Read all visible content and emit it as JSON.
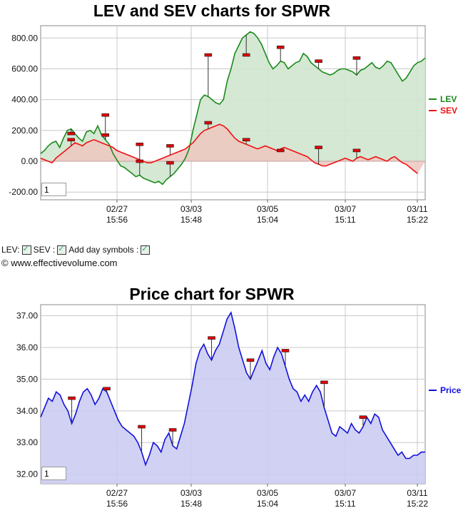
{
  "controls": {
    "lev_label": "LEV:",
    "sev_label": "SEV :",
    "day_symbols_label": "Add day symbols :",
    "lev_checked": true,
    "sev_checked": true,
    "day_symbols_checked": true
  },
  "copyright": "© www.effectivevolume.com",
  "colors": {
    "lev": "#1a8a1a",
    "sev": "#ee1111",
    "price": "#1111dd",
    "lev_fill": "#cfe6cf",
    "sev_fill": "#efc7c0",
    "price_fill": "#ccccf2",
    "marker": "#dd0000"
  },
  "chart_data": [
    {
      "type": "area",
      "title": "LEV and SEV charts for SPWR",
      "zoom_value": "1",
      "y_ticks": [
        "800.00",
        "600.00",
        "400.00",
        "200.00",
        "0.00",
        "-200.00"
      ],
      "ylim": [
        -250,
        880
      ],
      "x_ticks": [
        {
          "date": "02/27",
          "time": "15:56"
        },
        {
          "date": "03/03",
          "time": "15:48"
        },
        {
          "date": "03/05",
          "time": "15:04"
        },
        {
          "date": "03/07",
          "time": "15:11"
        },
        {
          "date": "03/11",
          "time": "15:22"
        }
      ],
      "grid": true,
      "legend_position": "right",
      "series": [
        {
          "name": "LEV",
          "values": [
            50,
            70,
            100,
            120,
            130,
            90,
            150,
            200,
            210,
            180,
            150,
            130,
            190,
            200,
            180,
            230,
            170,
            140,
            110,
            50,
            10,
            -30,
            -40,
            -60,
            -80,
            -100,
            -90,
            -110,
            -120,
            -130,
            -140,
            -130,
            -150,
            -120,
            -100,
            -80,
            -50,
            -20,
            20,
            80,
            200,
            300,
            400,
            430,
            420,
            400,
            380,
            370,
            400,
            520,
            600,
            700,
            750,
            800,
            820,
            840,
            830,
            800,
            760,
            700,
            640,
            600,
            620,
            650,
            640,
            600,
            620,
            640,
            650,
            700,
            680,
            640,
            620,
            600,
            580,
            570,
            560,
            570,
            590,
            600,
            600,
            590,
            580,
            560,
            590,
            600,
            620,
            640,
            610,
            600,
            620,
            650,
            640,
            600,
            560,
            520,
            540,
            580,
            620,
            640,
            650,
            670
          ]
        },
        {
          "name": "SEV",
          "values": [
            20,
            10,
            0,
            -10,
            20,
            40,
            60,
            80,
            100,
            120,
            110,
            100,
            120,
            130,
            140,
            130,
            120,
            110,
            100,
            90,
            70,
            60,
            50,
            40,
            30,
            20,
            10,
            0,
            -10,
            -10,
            0,
            10,
            20,
            30,
            40,
            50,
            60,
            70,
            80,
            100,
            120,
            150,
            180,
            200,
            210,
            220,
            230,
            240,
            230,
            210,
            180,
            150,
            130,
            120,
            110,
            100,
            90,
            80,
            90,
            100,
            90,
            80,
            70,
            80,
            90,
            80,
            70,
            60,
            50,
            40,
            30,
            10,
            -10,
            -20,
            -30,
            -30,
            -20,
            -10,
            0,
            10,
            20,
            10,
            0,
            20,
            30,
            20,
            10,
            20,
            30,
            20,
            10,
            0,
            20,
            30,
            10,
            -10,
            -20,
            -40,
            -60,
            -80
          ]
        }
      ],
      "day_markers": [
        {
          "series": "LEV",
          "index": 8,
          "value": 180
        },
        {
          "series": "SEV",
          "index": 8,
          "value": 140
        },
        {
          "series": "LEV",
          "index": 17,
          "value": 300
        },
        {
          "series": "LEV",
          "index": 17,
          "value": 170
        },
        {
          "series": "SEV",
          "index": 26,
          "value": 110
        },
        {
          "series": "LEV",
          "index": 26,
          "value": 0
        },
        {
          "series": "SEV",
          "index": 34,
          "value": 100
        },
        {
          "series": "LEV",
          "index": 34,
          "value": -10
        },
        {
          "series": "LEV",
          "index": 44,
          "value": 690
        },
        {
          "series": "SEV",
          "index": 44,
          "value": 250
        },
        {
          "series": "LEV",
          "index": 54,
          "value": 690
        },
        {
          "series": "SEV",
          "index": 54,
          "value": 140
        },
        {
          "series": "LEV",
          "index": 63,
          "value": 740
        },
        {
          "series": "SEV",
          "index": 63,
          "value": 70
        },
        {
          "series": "LEV",
          "index": 73,
          "value": 650
        },
        {
          "series": "SEV",
          "index": 73,
          "value": 90
        },
        {
          "series": "LEV",
          "index": 83,
          "value": 670
        },
        {
          "series": "SEV",
          "index": 83,
          "value": 70
        }
      ]
    },
    {
      "type": "area",
      "title": "Price chart for SPWR",
      "zoom_value": "1",
      "y_ticks": [
        "37.00",
        "36.00",
        "35.00",
        "34.00",
        "33.00",
        "32.00"
      ],
      "ylim": [
        31.7,
        37.35
      ],
      "x_ticks": [
        {
          "date": "02/27",
          "time": "15:56"
        },
        {
          "date": "03/03",
          "time": "15:48"
        },
        {
          "date": "03/05",
          "time": "15:04"
        },
        {
          "date": "03/07",
          "time": "15:11"
        },
        {
          "date": "03/11",
          "time": "15:22"
        }
      ],
      "grid": true,
      "legend_position": "right",
      "series": [
        {
          "name": "Price",
          "values": [
            33.8,
            34.1,
            34.4,
            34.3,
            34.6,
            34.5,
            34.2,
            34.0,
            33.6,
            33.9,
            34.3,
            34.6,
            34.7,
            34.5,
            34.2,
            34.4,
            34.7,
            34.6,
            34.3,
            34.0,
            33.7,
            33.5,
            33.4,
            33.3,
            33.2,
            33.0,
            32.7,
            32.3,
            32.6,
            33.0,
            32.9,
            32.7,
            33.1,
            33.3,
            32.9,
            32.8,
            33.2,
            33.6,
            34.2,
            34.8,
            35.5,
            35.9,
            36.1,
            35.8,
            35.6,
            35.9,
            36.1,
            36.5,
            36.9,
            37.1,
            36.6,
            36.0,
            35.6,
            35.2,
            35.0,
            35.3,
            35.6,
            35.9,
            35.5,
            35.3,
            35.7,
            36.0,
            35.8,
            35.4,
            35.0,
            34.7,
            34.6,
            34.3,
            34.5,
            34.3,
            34.6,
            34.8,
            34.6,
            34.1,
            33.7,
            33.3,
            33.2,
            33.5,
            33.4,
            33.3,
            33.6,
            33.4,
            33.3,
            33.5,
            33.8,
            33.6,
            33.9,
            33.8,
            33.4,
            33.2,
            33.0,
            32.8,
            32.6,
            32.7,
            32.5,
            32.5,
            32.6,
            32.6,
            32.7,
            32.7
          ]
        }
      ],
      "day_markers": [
        {
          "series": "Price",
          "index": 8,
          "value": 34.4
        },
        {
          "series": "Price",
          "index": 17,
          "value": 34.7
        },
        {
          "series": "Price",
          "index": 26,
          "value": 33.5
        },
        {
          "series": "Price",
          "index": 34,
          "value": 33.4
        },
        {
          "series": "Price",
          "index": 44,
          "value": 36.3
        },
        {
          "series": "Price",
          "index": 54,
          "value": 35.6
        },
        {
          "series": "Price",
          "index": 63,
          "value": 35.9
        },
        {
          "series": "Price",
          "index": 73,
          "value": 34.9
        },
        {
          "series": "Price",
          "index": 83,
          "value": 33.8
        }
      ]
    }
  ]
}
